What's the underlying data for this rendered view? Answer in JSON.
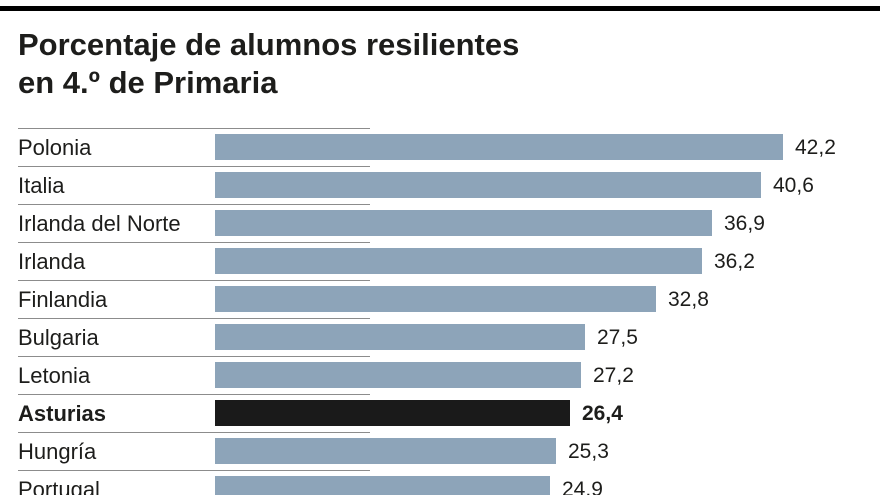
{
  "title": {
    "line1": "Porcentaje de alumnos resilientes",
    "line2": "en 4.º de Primaria"
  },
  "chart_data": {
    "type": "bar",
    "orientation": "horizontal",
    "title": "Porcentaje de alumnos resilientes en 4.º de Primaria",
    "categories": [
      "Polonia",
      "Italia",
      "Irlanda del Norte",
      "Irlanda",
      "Finlandia",
      "Bulgaria",
      "Letonia",
      "Asturias",
      "Hungría",
      "Portugal"
    ],
    "values": [
      42.2,
      40.6,
      36.9,
      36.2,
      32.8,
      27.5,
      27.2,
      26.4,
      25.3,
      24.9
    ],
    "value_labels": [
      "42,2",
      "40,6",
      "36,9",
      "36,2",
      "32,8",
      "27,5",
      "27,2",
      "26,4",
      "25,3",
      "24,9"
    ],
    "highlight_category": "Asturias",
    "bar_color": "#8da4b9",
    "highlight_color": "#1a1a1a",
    "xlim": [
      0,
      45
    ],
    "xlabel": "",
    "ylabel": "",
    "grid": false,
    "legend": false
  }
}
